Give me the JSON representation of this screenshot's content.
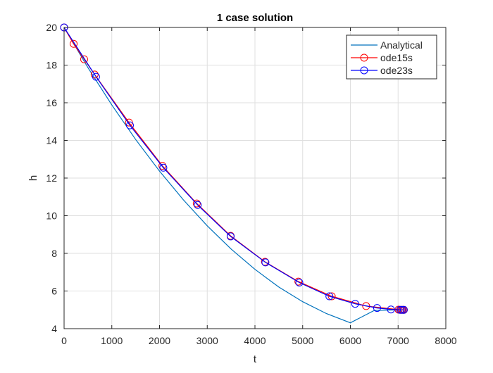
{
  "chart_data": {
    "type": "line",
    "title": "1 case solution",
    "xlabel": "t",
    "ylabel": "h",
    "xlim": [
      0,
      8000
    ],
    "ylim": [
      4,
      20
    ],
    "xticks": [
      0,
      1000,
      2000,
      3000,
      4000,
      5000,
      6000,
      7000,
      8000
    ],
    "yticks": [
      4,
      6,
      8,
      10,
      12,
      14,
      16,
      18,
      20
    ],
    "grid": true,
    "legend_position": "top-right",
    "series": [
      {
        "name": "Analytical",
        "color": "#0072BD",
        "marker": "none",
        "x": [
          0,
          500,
          1000,
          1500,
          2000,
          2500,
          3000,
          3500,
          4000,
          4500,
          5000,
          5500,
          6000,
          6500,
          7000,
          7120
        ],
        "y": [
          20,
          17.86,
          15.88,
          14.05,
          12.37,
          10.84,
          9.46,
          8.23,
          7.15,
          6.21,
          5.43,
          4.8,
          4.31,
          4.97,
          5.0,
          5.0
        ]
      },
      {
        "name": "ode15s",
        "color": "#FF0000",
        "marker": "circle",
        "x": [
          0,
          200,
          420,
          640,
          1360,
          2060,
          2780,
          3490,
          4210,
          4910,
          5610,
          6330,
          7010,
          7060,
          7100,
          7120
        ],
        "y": [
          20,
          19.13,
          18.31,
          17.5,
          14.95,
          12.65,
          10.65,
          8.93,
          7.55,
          6.5,
          5.72,
          5.2,
          5.01,
          5.0,
          5.0,
          5.0
        ]
      },
      {
        "name": "ode23s",
        "color": "#0000FF",
        "marker": "circle",
        "x": [
          0,
          670,
          1380,
          2080,
          2800,
          3490,
          4220,
          4930,
          5560,
          6100,
          6560,
          6850,
          7040,
          7080,
          7120
        ],
        "y": [
          20,
          17.38,
          14.8,
          12.55,
          10.57,
          8.9,
          7.52,
          6.45,
          5.72,
          5.32,
          5.1,
          5.02,
          5.0,
          5.0,
          5.0
        ]
      }
    ]
  }
}
